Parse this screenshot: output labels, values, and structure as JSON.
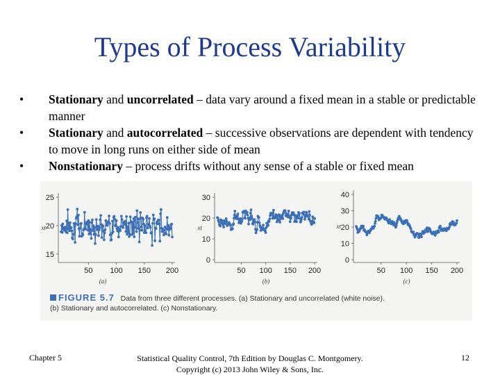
{
  "slide": {
    "title": "Types of Process Variability",
    "bullets": [
      {
        "bold1": "Stationary",
        "mid": " and ",
        "bold2": "uncorrelated",
        "rest": " – data vary around a fixed mean in a stable or predictable manner"
      },
      {
        "bold1": "Stationary",
        "mid": " and ",
        "bold2": "autocorrelated",
        "rest": " – successive observations are dependent with tendency to move in long runs on either side of mean"
      },
      {
        "bold1": "Nonstationary",
        "mid": "",
        "bold2": "",
        "rest": " – process drifts without any sense of a stable or fixed mean"
      }
    ],
    "bullet_symbol": "•"
  },
  "figure": {
    "label": "FIGURE 5.7",
    "caption_line1": "Data from three different processes. (a) Stationary and uncorrelated (white noise).",
    "caption_line2": "(b) Stationary and autocorrelated. (c) Nonstationary.",
    "accent_color": "#3b6fb6"
  },
  "chart_data": [
    {
      "type": "line",
      "panel": "(a)",
      "ylabel": "xt",
      "ylim": [
        14,
        25
      ],
      "yticks": [
        "15",
        "20",
        "25"
      ],
      "xticks": [
        "50",
        "100",
        "150",
        "200"
      ],
      "n": 200,
      "mean": 20
    },
    {
      "type": "line",
      "panel": "(b)",
      "ylabel": "xt",
      "ylim": [
        0,
        30
      ],
      "yticks": [
        "0",
        "10",
        "20",
        "30"
      ],
      "xticks": [
        "50",
        "100",
        "150",
        "200"
      ],
      "n": 200
    },
    {
      "type": "line",
      "panel": "(c)",
      "ylabel": "xt",
      "ylim": [
        0,
        40
      ],
      "yticks": [
        "0",
        "10",
        "20",
        "30",
        "40"
      ],
      "xticks": [
        "50",
        "100",
        "150",
        "200"
      ],
      "n": 200
    }
  ],
  "footer": {
    "chapter": "Chapter 5",
    "source_line1": "Statistical Quality Control, 7th Edition by Douglas C. Montgomery.",
    "source_line2": "Copyright (c) 2013  John Wiley & Sons, Inc.",
    "page": "12"
  }
}
